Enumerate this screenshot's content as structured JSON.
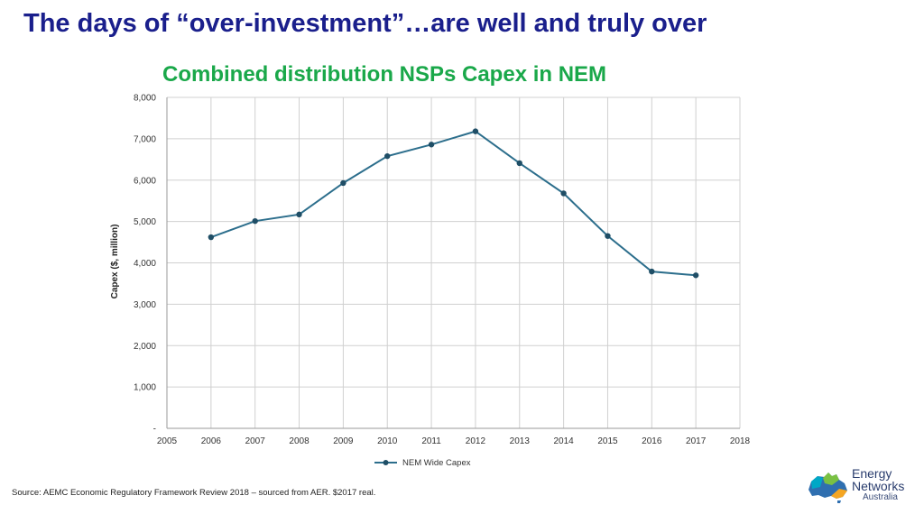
{
  "slide": {
    "title": "The days of “over-investment”…are well and truly over",
    "source": "Source: AEMC Economic Regulatory Framework Review 2018 – sourced from AER. $2017 real."
  },
  "logo": {
    "line1": "Energy",
    "line2": "Networks",
    "line3": "Australia"
  },
  "colors": {
    "title": "#1a1f8c",
    "chart_title": "#1aa84a",
    "series": "#2c6e8c",
    "grid": "#d0d0d0"
  },
  "chart_data": {
    "type": "line",
    "title": "Combined distribution NSPs Capex in NEM",
    "xlabel": "",
    "ylabel": "Capex ($, million)",
    "xlim": [
      2005,
      2018
    ],
    "ylim": [
      0,
      8000
    ],
    "x_ticks": [
      2005,
      2006,
      2007,
      2008,
      2009,
      2010,
      2011,
      2012,
      2013,
      2014,
      2015,
      2016,
      2017,
      2018
    ],
    "y_ticks": [
      {
        "value": 0,
        "label": "-"
      },
      {
        "value": 1000,
        "label": "1,000"
      },
      {
        "value": 2000,
        "label": "2,000"
      },
      {
        "value": 3000,
        "label": "3,000"
      },
      {
        "value": 4000,
        "label": "4,000"
      },
      {
        "value": 5000,
        "label": "5,000"
      },
      {
        "value": 6000,
        "label": "6,000"
      },
      {
        "value": 7000,
        "label": "7,000"
      },
      {
        "value": 8000,
        "label": "8,000"
      }
    ],
    "grid": true,
    "legend": "bottom",
    "series": [
      {
        "name": "NEM Wide Capex",
        "x": [
          2006,
          2007,
          2008,
          2009,
          2010,
          2011,
          2012,
          2013,
          2014,
          2015,
          2016,
          2017
        ],
        "values": [
          4620,
          5010,
          5170,
          5930,
          6580,
          6860,
          7180,
          6410,
          5680,
          4650,
          3790,
          3700
        ]
      }
    ]
  }
}
